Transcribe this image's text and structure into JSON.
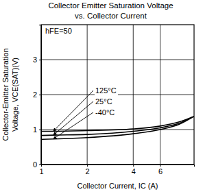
{
  "chart_data": {
    "type": "line",
    "title": "Collector Emitter Saturation Voltage",
    "subtitle": "vs. Collector Current",
    "x_label": "Collector Current, IC (A)",
    "y_label": [
      "Collector-Emitter Saturation",
      "Voltage, VCE(SAT)(V)"
    ],
    "annotation": "hFE=50",
    "x": [
      1,
      1.2,
      2,
      4,
      6,
      8,
      10
    ],
    "series": [
      {
        "name": "125°C",
        "color": "#000000",
        "line_style": "solid",
        "values": [
          0.95,
          0.95,
          0.97,
          1.02,
          1.1,
          1.22,
          1.38
        ]
      },
      {
        "name": "25°C",
        "color": "#000000",
        "line_style": "solid",
        "values": [
          0.83,
          0.84,
          0.86,
          0.95,
          1.05,
          1.18,
          1.38
        ]
      },
      {
        "name": "-40°C",
        "color": "#000000",
        "line_style": "solid",
        "values": [
          0.72,
          0.73,
          0.77,
          0.88,
          1.0,
          1.15,
          1.38
        ]
      }
    ],
    "xlim": [
      1,
      10
    ],
    "xticks": [
      1,
      2,
      4,
      6
    ],
    "ylim": [
      0,
      4
    ],
    "yticks": [
      0,
      1,
      2,
      3
    ],
    "log": "x",
    "grid": true
  }
}
